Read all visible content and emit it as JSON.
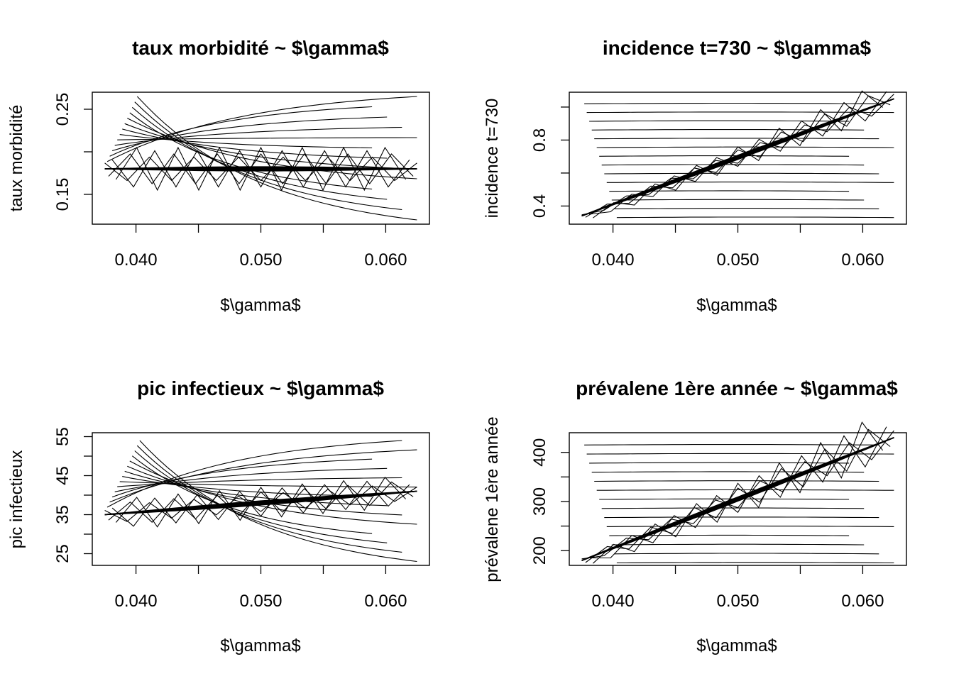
{
  "chart_data": [
    {
      "type": "line",
      "title": "taux morbidité ~ $\\gamma$",
      "xlabel": "$\\gamma$",
      "ylabel": "taux morbidité",
      "xlim": [
        0.0365,
        0.0635
      ],
      "ylim": [
        0.115,
        0.27
      ],
      "xticks": [
        0.04,
        0.045,
        0.05,
        0.055,
        0.06
      ],
      "xtick_labels": [
        "0.040",
        "",
        "0.050",
        "",
        "0.060"
      ],
      "yticks": [
        0.15,
        0.2,
        0.25
      ],
      "ytick_labels": [
        "0.15",
        "",
        "0.25"
      ],
      "converge_value": 0.18,
      "fan_low": 0.12,
      "fan_high": 0.265,
      "fan_count": 13,
      "zigzag_amplitude": 0.025,
      "trend": "decreasing"
    },
    {
      "type": "line",
      "title": "incidence t=730 ~ $\\gamma$",
      "xlabel": "$\\gamma$",
      "ylabel": "incidence t=730",
      "xlim": [
        0.0365,
        0.0635
      ],
      "ylim": [
        0.29,
        1.09
      ],
      "xticks": [
        0.04,
        0.045,
        0.05,
        0.055,
        0.06
      ],
      "xtick_labels": [
        "0.040",
        "",
        "0.050",
        "",
        "0.060"
      ],
      "yticks": [
        0.4,
        0.6,
        0.8,
        1.0
      ],
      "ytick_labels": [
        "0.4",
        "",
        "0.8",
        ""
      ],
      "start_value": 0.34,
      "end_value": 1.05,
      "fan_low": 0.33,
      "fan_high": 1.02,
      "fan_count": 14,
      "zigzag_amplitude": 0.08,
      "trend": "increasing"
    },
    {
      "type": "line",
      "title": "pic infectieux ~ $\\gamma$",
      "xlabel": "$\\gamma$",
      "ylabel": "pic infectieux",
      "xlim": [
        0.0365,
        0.0635
      ],
      "ylim": [
        22,
        56
      ],
      "xticks": [
        0.04,
        0.045,
        0.05,
        0.055,
        0.06
      ],
      "xtick_labels": [
        "0.040",
        "",
        "0.050",
        "",
        "0.060"
      ],
      "yticks": [
        25,
        30,
        35,
        40,
        45,
        50,
        55
      ],
      "ytick_labels": [
        "25",
        "",
        "35",
        "",
        "45",
        "",
        "55"
      ],
      "start_value": 35,
      "end_value": 41,
      "fan_low": 23,
      "fan_high": 54,
      "fan_count": 14,
      "zigzag_amplitude": 4,
      "trend": "decreasing"
    },
    {
      "type": "line",
      "title": "prévalene 1ère année ~ $\\gamma$",
      "xlabel": "$\\gamma$",
      "ylabel": "prévalene 1ère année",
      "xlim": [
        0.0365,
        0.0635
      ],
      "ylim": [
        170,
        440
      ],
      "xticks": [
        0.04,
        0.045,
        0.05,
        0.055,
        0.06
      ],
      "xtick_labels": [
        "0.040",
        "",
        "0.050",
        "",
        "0.060"
      ],
      "yticks": [
        200,
        250,
        300,
        350,
        400
      ],
      "ytick_labels": [
        "200",
        "",
        "300",
        "",
        "400"
      ],
      "start_value": 180,
      "end_value": 430,
      "fan_low": 175,
      "fan_high": 415,
      "fan_count": 14,
      "zigzag_amplitude": 40,
      "trend": "increasing"
    }
  ]
}
